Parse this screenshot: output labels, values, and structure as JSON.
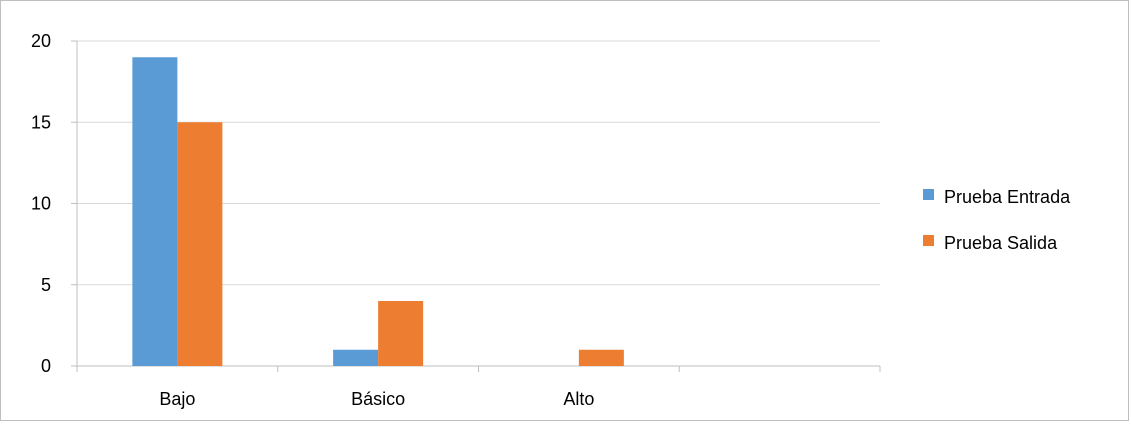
{
  "chart_data": {
    "type": "bar",
    "categories": [
      "Bajo",
      "Básico",
      "Alto",
      ""
    ],
    "series": [
      {
        "name": "Prueba Entrada",
        "values": [
          19,
          1,
          0,
          null
        ],
        "color": "#5B9BD5"
      },
      {
        "name": "Prueba Salida",
        "values": [
          15,
          4,
          1,
          null
        ],
        "color": "#ED7D31"
      }
    ],
    "yticks": [
      0,
      5,
      10,
      15,
      20
    ],
    "ylim": [
      0,
      20
    ],
    "grid": true,
    "legend_position": "right",
    "title": "",
    "xlabel": "",
    "ylabel": ""
  }
}
